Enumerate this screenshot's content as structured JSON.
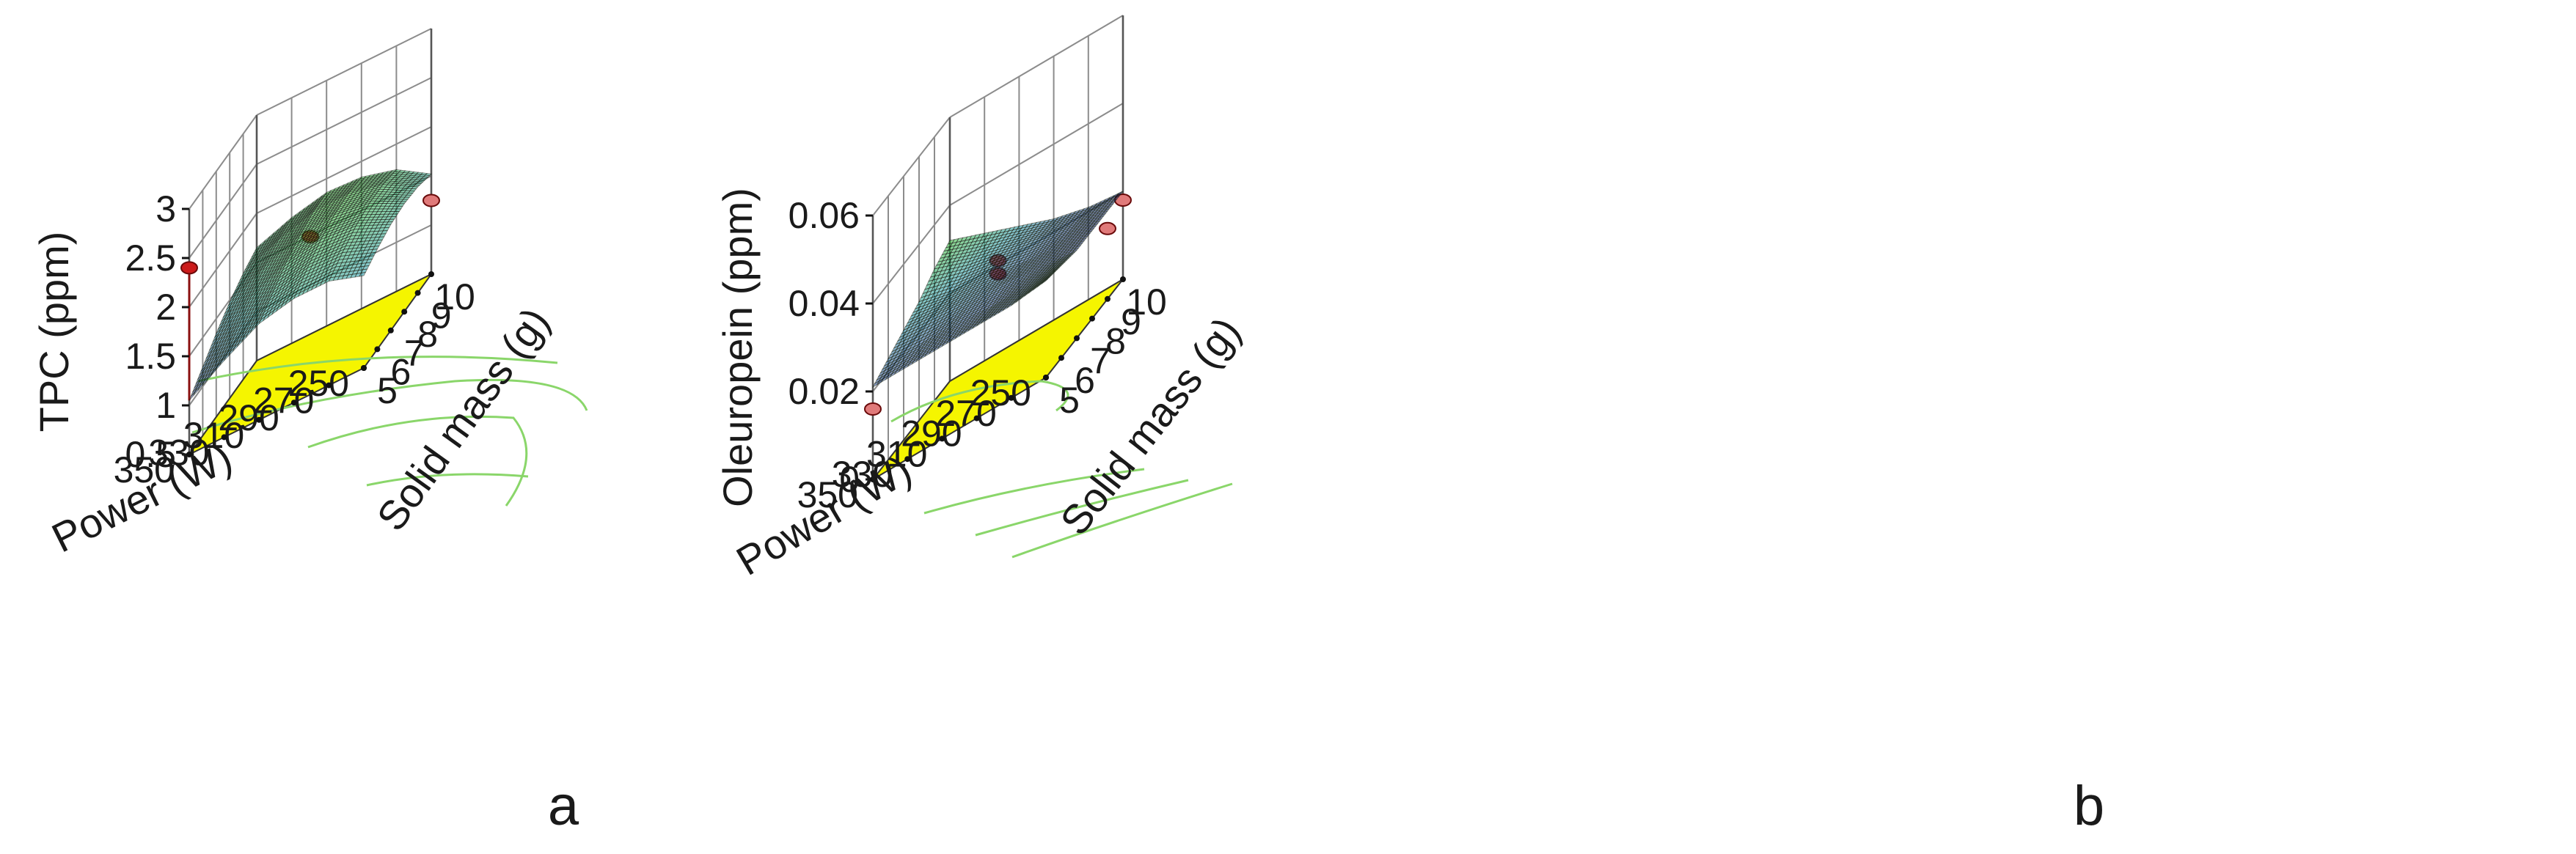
{
  "figure": {
    "panels": [
      {
        "letter": "a"
      },
      {
        "letter": "b"
      }
    ]
  },
  "colors": {
    "floor": "#f5f500",
    "contour": "#8ad66a",
    "surface_low": "#1e2a8c",
    "surface_mid": "#1f9aa8",
    "surface_high": "#2db82d",
    "design_point": "#cc1a1a",
    "design_point_below": "#e07a7a"
  },
  "chart_data": [
    {
      "type": "surface3d",
      "title": "",
      "zlabel": "TPC (ppm)",
      "xlabel": "Solid mass (g)",
      "ylabel": "Power (W)",
      "x_ticks": [
        "5",
        "6",
        "7",
        "8",
        "9",
        "10"
      ],
      "y_ticks": [
        "250",
        "270",
        "290",
        "310",
        "330",
        "350"
      ],
      "z_ticks": [
        "0.5",
        "1",
        "1.5",
        "2",
        "2.5",
        "3"
      ],
      "xlim": [
        5,
        10
      ],
      "ylim": [
        250,
        350
      ],
      "zlim": [
        0.5,
        3
      ],
      "surface": {
        "x": [
          5,
          6,
          7,
          8,
          9,
          10
        ],
        "y": [
          250,
          270,
          290,
          310,
          330,
          350
        ],
        "z": [
          [
            1.65,
            1.78,
            1.86,
            1.84,
            1.74,
            1.52
          ],
          [
            1.58,
            1.74,
            1.85,
            1.86,
            1.78,
            1.58
          ],
          [
            1.48,
            1.66,
            1.8,
            1.84,
            1.78,
            1.6
          ],
          [
            1.35,
            1.55,
            1.72,
            1.78,
            1.74,
            1.58
          ],
          [
            1.2,
            1.42,
            1.6,
            1.68,
            1.66,
            1.52
          ],
          [
            1.05,
            1.28,
            1.48,
            1.56,
            1.56,
            1.44
          ]
        ]
      },
      "design_points": [
        {
          "x": 5,
          "y": 350,
          "z": 2.4
        },
        {
          "x": 7.5,
          "y": 300,
          "z": 1.8
        },
        {
          "x": 10,
          "y": 250,
          "z": 1.25
        }
      ]
    },
    {
      "type": "surface3d",
      "title": "",
      "zlabel": "Oleuropein (ppm)",
      "xlabel": "Solid mass (g)",
      "ylabel": "Power (W)",
      "x_ticks": [
        "5",
        "6",
        "7",
        "8",
        "9",
        "10"
      ],
      "y_ticks": [
        "250",
        "270",
        "290",
        "310",
        "330",
        "350"
      ],
      "z_ticks": [
        "0",
        "0.02",
        "0.04",
        "0.06"
      ],
      "xlim": [
        5,
        10
      ],
      "ylim": [
        250,
        350
      ],
      "zlim": [
        0,
        0.06
      ],
      "surface": {
        "x": [
          5,
          6,
          7,
          8,
          9,
          10
        ],
        "y": [
          250,
          270,
          290,
          310,
          330,
          350
        ],
        "z": [
          [
            0.032,
            0.029,
            0.026,
            0.023,
            0.021,
            0.02
          ],
          [
            0.03,
            0.027,
            0.025,
            0.023,
            0.021,
            0.02
          ],
          [
            0.027,
            0.025,
            0.024,
            0.022,
            0.021,
            0.02
          ],
          [
            0.025,
            0.024,
            0.023,
            0.022,
            0.021,
            0.02
          ],
          [
            0.023,
            0.022,
            0.022,
            0.021,
            0.021,
            0.021
          ],
          [
            0.021,
            0.021,
            0.021,
            0.021,
            0.021,
            0.022
          ]
        ]
      },
      "design_points": [
        {
          "x": 7.5,
          "y": 300,
          "z": 0.027
        },
        {
          "x": 7.5,
          "y": 300,
          "z": 0.024
        },
        {
          "x": 5,
          "y": 350,
          "z": 0.016
        },
        {
          "x": 10,
          "y": 250,
          "z": 0.018
        },
        {
          "x": 10,
          "y": 270,
          "z": 0.016
        }
      ]
    }
  ]
}
